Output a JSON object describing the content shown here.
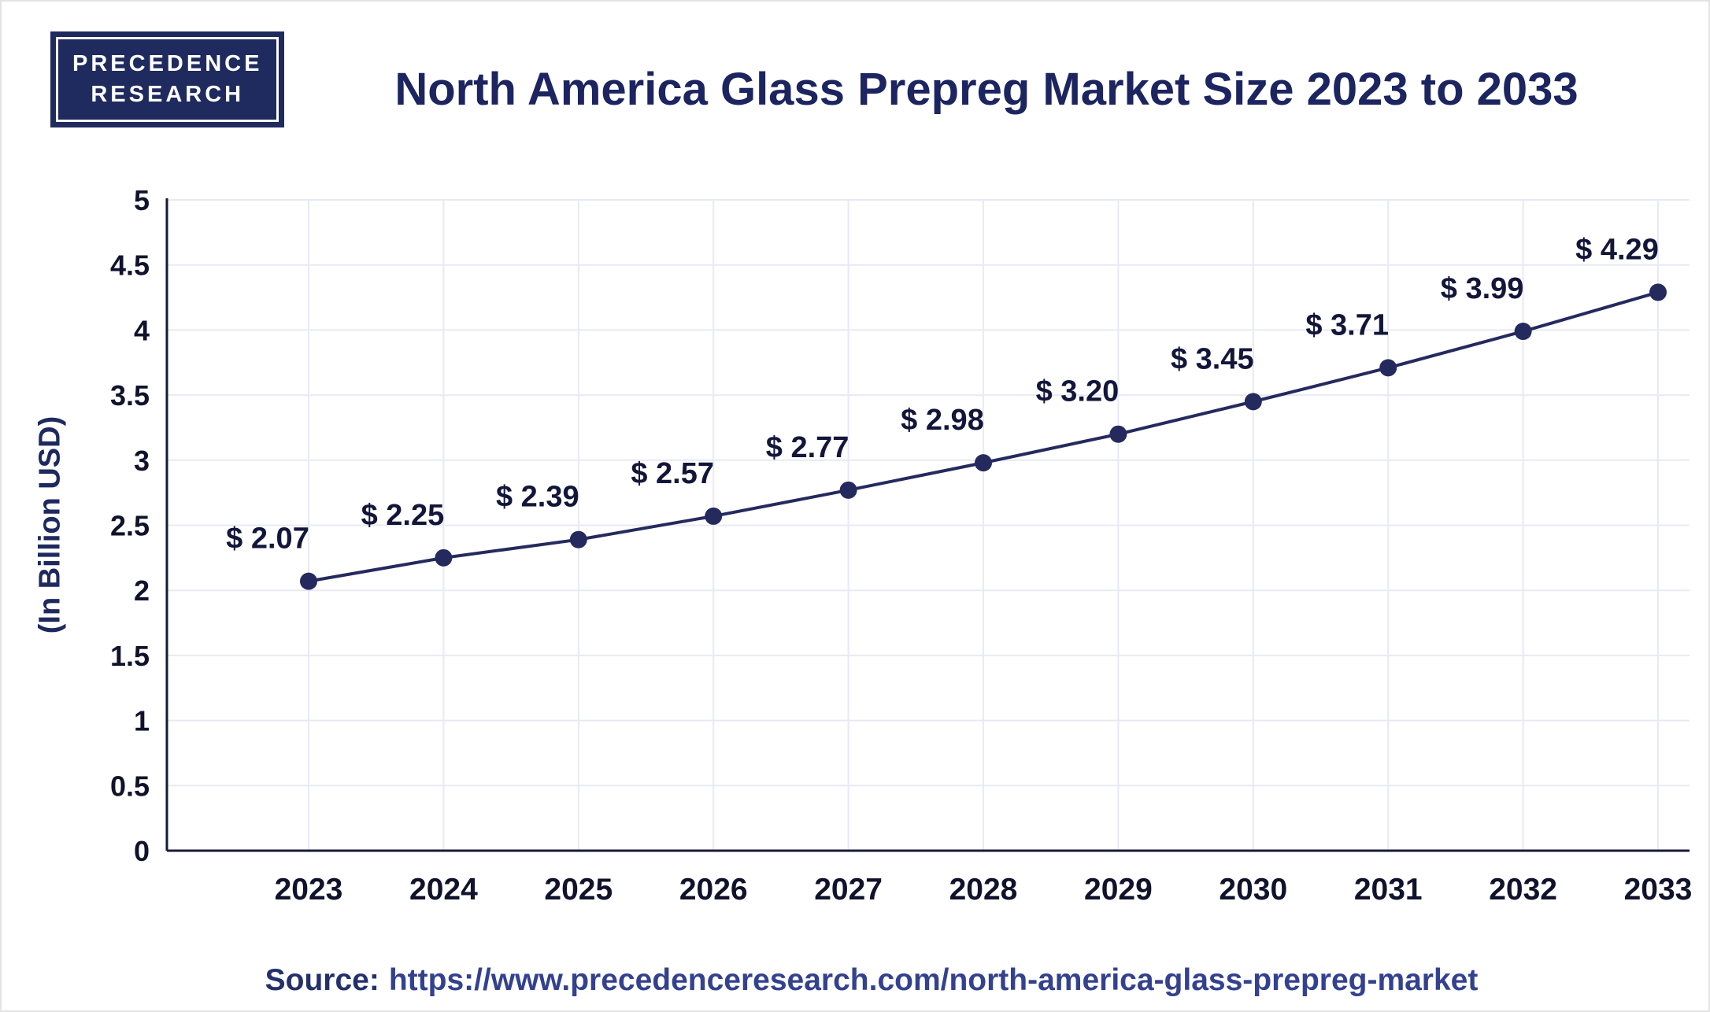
{
  "logo": {
    "line1": "PRECEDENCE",
    "line2": "RESEARCH"
  },
  "title": "North America Glass Prepreg Market Size 2023 to 2033",
  "chart_data": {
    "type": "line",
    "title": "North America Glass Prepreg Market Size 2023 to 2033",
    "categories": [
      "2023",
      "2024",
      "2025",
      "2026",
      "2027",
      "2028",
      "2029",
      "2030",
      "2031",
      "2032",
      "2033"
    ],
    "values": [
      2.07,
      2.25,
      2.39,
      2.57,
      2.77,
      2.98,
      3.2,
      3.45,
      3.71,
      3.99,
      4.29
    ],
    "point_labels": [
      "$ 2.07",
      "$ 2.25",
      "$ 2.39",
      "$ 2.57",
      "$ 2.77",
      "$ 2.98",
      "$ 3.20",
      "$ 3.45",
      "$ 3.71",
      "$ 3.99",
      "$ 4.29"
    ],
    "xlabel": "",
    "ylabel": "(In Billion USD)",
    "ylim": [
      0,
      5
    ],
    "yticks": [
      0,
      0.5,
      1,
      1.5,
      2,
      2.5,
      3,
      3.5,
      4,
      4.5,
      5
    ],
    "grid": true,
    "legend": false,
    "line_color": "#252a5e",
    "marker_color": "#252a5e",
    "grid_color": "#e8eaf3",
    "axis_color": "#181a38",
    "tick_label_color": "#10132b",
    "data_label_color": "#13163a"
  },
  "source": {
    "label": "Source:",
    "url": "https://www.precedenceresearch.com/north-america-glass-prepreg-market"
  }
}
